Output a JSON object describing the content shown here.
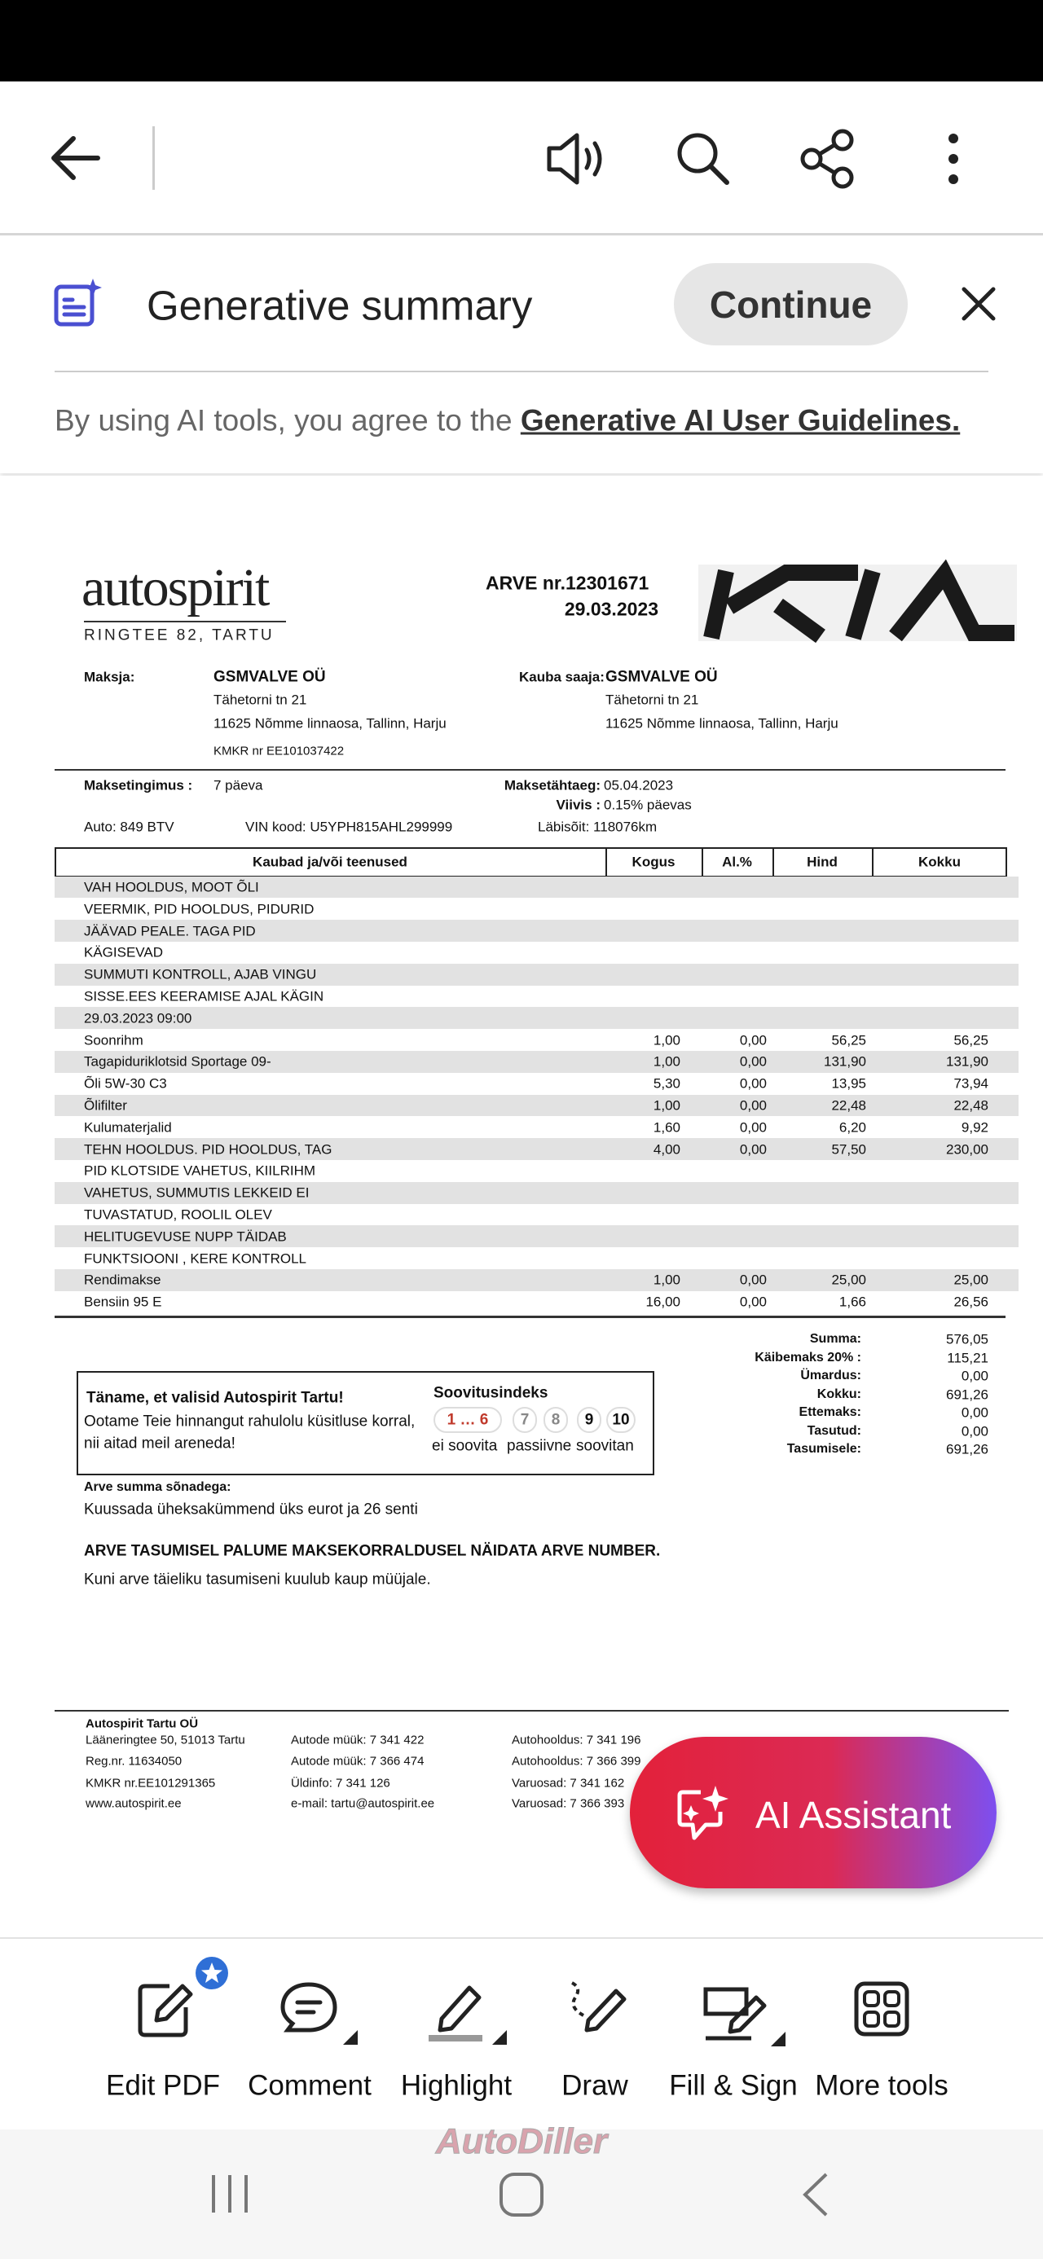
{
  "banner": {
    "title": "Generative summary",
    "button": "Continue",
    "notice": "By using AI tools, you agree to the ",
    "notice_link": "Generative AI User Guidelines."
  },
  "invoice": {
    "logo": "autospirit",
    "address": "RINGTEE 82, TARTU",
    "number": "ARVE nr.12301671",
    "date": "29.03.2023",
    "payer": {
      "label": "Maksja:",
      "name": "GSMVALVE OÜ",
      "lines": [
        "Tähetorni tn 21",
        "11625 Nõmme linnaosa, Tallinn, Harju",
        "KMKR nr EE101037422"
      ]
    },
    "recipient": {
      "label": "Kauba saaja:",
      "name": "GSMVALVE OÜ",
      "lines": [
        "Tähetorni tn 21",
        "11625 Nõmme linnaosa, Tallinn, Harju"
      ]
    },
    "payment_terms": {
      "label": "Maksetingimus :",
      "value": "7 päeva"
    },
    "due_date": {
      "label": "Maksetähtaeg:",
      "value": "05.04.2023"
    },
    "penalty": {
      "label": "Viivis :",
      "value": "0.15% päevas"
    },
    "car": "Auto: 849 BTV",
    "vin": "VIN kood: U5YPH815AHL299999",
    "mileage": "Läbisõit: 118076km",
    "table": {
      "headers": [
        "Kaubad ja/või teenused",
        "Kogus",
        "Al.%",
        "Hind",
        "Kokku"
      ],
      "rows": [
        [
          "VAH HOOLDUS, MOOT ÕLI"
        ],
        [
          "VEERMIK, PID HOOLDUS, PIDURID"
        ],
        [
          "JÄÄVAD PEALE. TAGA PID"
        ],
        [
          "KÄGISEVAD"
        ],
        [
          "SUMMUTI KONTROLL, AJAB VINGU"
        ],
        [
          "SISSE.EES KEERAMISE AJAL KÄGIN"
        ],
        [
          "29.03.2023 09:00"
        ],
        [
          "Soonrihm",
          "1,00",
          "0,00",
          "56,25",
          "56,25"
        ],
        [
          "Tagapiduriklotsid Sportage 09-",
          "1,00",
          "0,00",
          "131,90",
          "131,90"
        ],
        [
          "Õli 5W-30 C3",
          "5,30",
          "0,00",
          "13,95",
          "73,94"
        ],
        [
          "Õlifilter",
          "1,00",
          "0,00",
          "22,48",
          "22,48"
        ],
        [
          "Kulumaterjalid",
          "1,60",
          "0,00",
          "6,20",
          "9,92"
        ],
        [
          "TEHN HOOLDUS. PID HOOLDUS, TAG",
          "4,00",
          "0,00",
          "57,50",
          "230,00"
        ],
        [
          "PID KLOTSIDE VAHETUS, KIILRIHM"
        ],
        [
          "VAHETUS, SUMMUTIS LEKKEID EI"
        ],
        [
          "TUVASTATUD, ROOLIL OLEV"
        ],
        [
          "HELITUGEVUSE NUPP TÄIDAB"
        ],
        [
          "FUNKTSIOONI , KERE KONTROLL"
        ],
        [
          "Rendimakse",
          "1,00",
          "0,00",
          "25,00",
          "25,00"
        ],
        [
          "Bensiin 95 E",
          "16,00",
          "0,00",
          "1,66",
          "26,56"
        ]
      ]
    },
    "totals": [
      [
        "Summa:",
        "576,05"
      ],
      [
        "Käibemaks  20% :",
        "115,21"
      ],
      [
        "Ümardus:",
        "0,00"
      ],
      [
        "Kokku:",
        "691,26"
      ],
      [
        "Ettemaks:",
        "0,00"
      ],
      [
        "Tasutud:",
        "0,00"
      ],
      [
        "Tasumisele:",
        "691,26"
      ]
    ],
    "feedback": {
      "title": "Täname, et valisid Autospirit Tartu!",
      "text": [
        "Ootame Teie hinnangut rahulolu küsitluse korral,",
        "nii aitad meil areneda!"
      ],
      "scale_title": "Soovitusindeks",
      "scale": [
        "1 … 6",
        "7",
        "8",
        "9",
        "10"
      ],
      "scale_labels": [
        "ei soovita",
        "passiivne",
        "soovitan"
      ]
    },
    "sum_words_label": "Arve summa sõnadega:",
    "sum_words": "Kuussada üheksakümmend üks eurot ja 26 senti",
    "notice": "ARVE TASUMISEL PALUME MAKSEKORRALDUSEL NÄIDATA ARVE NUMBER.",
    "ownership": "Kuni arve täieliku tasumiseni kuulub kaup müüjale.",
    "footer": [
      [
        "Autospirit Tartu OÜ",
        "Lääneringtee 50, 51013 Tartu",
        "Reg.nr.   11634050",
        "KMKR nr.EE101291365",
        "www.autospirit.ee"
      ],
      [
        "Autode müük: 7 341 422",
        "Autode müük: 7 366 474",
        "Üldinfo: 7 341 126",
        "e-mail: tartu@autospirit.ee"
      ],
      [
        "Autohooldus: 7 341 196",
        "Autohooldus: 7 366 399",
        "Varuosad: 7 341 162",
        "Varuosad: 7 366 393"
      ]
    ]
  },
  "ai_assistant": "AI Assistant",
  "tools": [
    "Edit PDF",
    "Comment",
    "Highlight",
    "Draw",
    "Fill & Sign",
    "More tools"
  ],
  "watermark": "AutoDiller"
}
